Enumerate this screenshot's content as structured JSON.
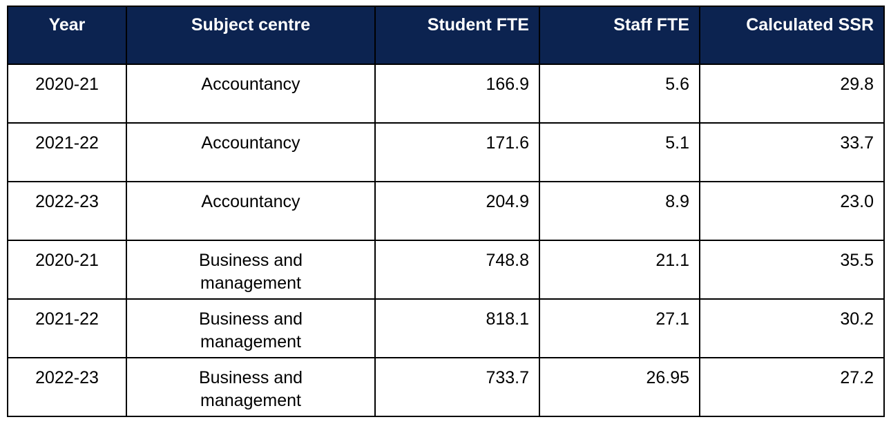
{
  "headers": [
    "Year",
    "Subject centre",
    "Student FTE",
    "Staff FTE",
    "Calculated SSR"
  ],
  "header_color": "#0c2350",
  "rows": [
    [
      "2020-21",
      "Accountancy",
      "166.9",
      "5.6",
      "29.8"
    ],
    [
      "2021-22",
      "Accountancy",
      "171.6",
      "5.1",
      "33.7"
    ],
    [
      "2022-23",
      "Accountancy",
      "204.9",
      "8.9",
      "23.0"
    ],
    [
      "2020-21",
      "Business and management",
      "748.8",
      "21.1",
      "35.5"
    ],
    [
      "2021-22",
      "Business and management",
      "818.1",
      "27.1",
      "30.2"
    ],
    [
      "2022-23",
      "Business and management",
      "733.7",
      "26.95",
      "27.2"
    ]
  ]
}
